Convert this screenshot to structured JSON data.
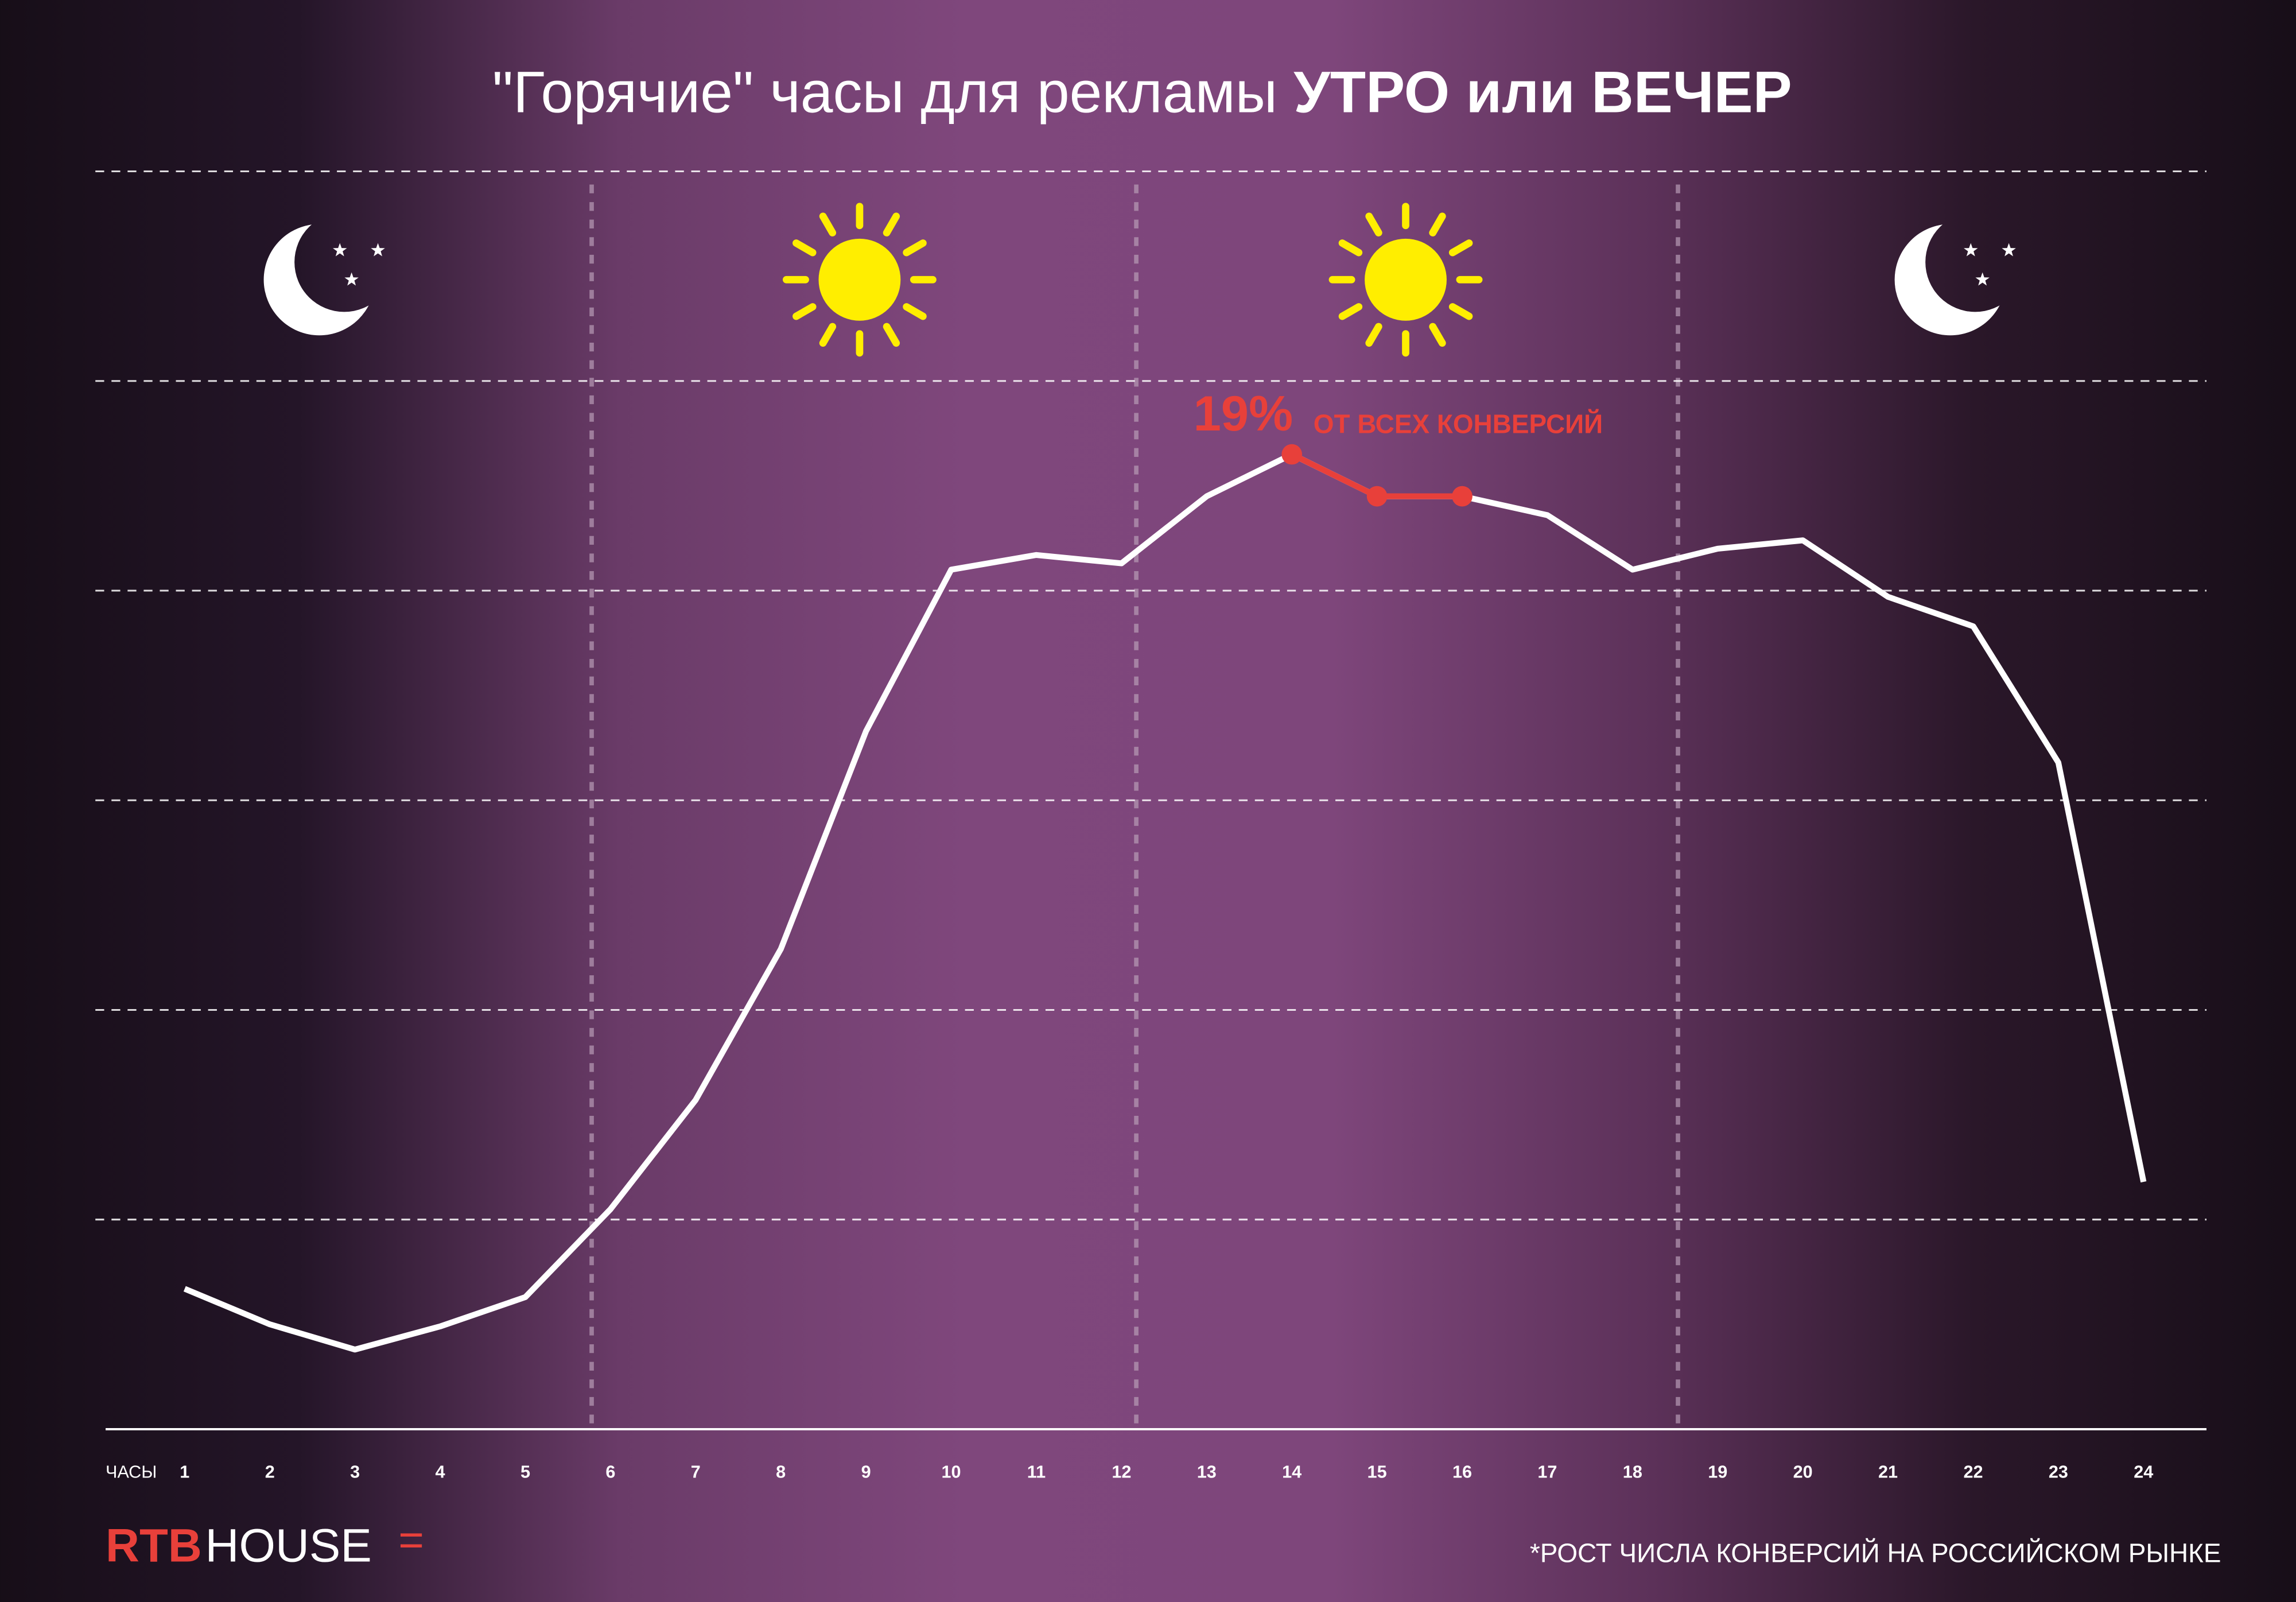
{
  "chart_data": {
    "type": "line",
    "title": "\"Горячие\" часы для рекламы ",
    "title_bold": "УТРО или ВЕЧЕР",
    "x_label": "ЧАСЫ",
    "categories": [
      "1",
      "2",
      "3",
      "4",
      "5",
      "6",
      "7",
      "8",
      "9",
      "10",
      "11",
      "12",
      "13",
      "14",
      "15",
      "16",
      "17",
      "18",
      "19",
      "20",
      "21",
      "22",
      "23",
      "24"
    ],
    "values": [
      0.67,
      0.5,
      0.38,
      0.49,
      0.63,
      1.05,
      1.57,
      2.29,
      3.33,
      4.1,
      4.17,
      4.13,
      4.45,
      4.65,
      4.45,
      4.45,
      4.36,
      4.1,
      4.2,
      4.24,
      3.97,
      3.83,
      3.18,
      1.18
    ],
    "color": "#ffffff",
    "highlight_color": "#e8403a",
    "highlight_categories": [
      "14",
      "15",
      "16"
    ],
    "annotation": {
      "value_label": "19%",
      "text": "ОТ ВСЕХ КОНВЕРСИЙ"
    },
    "ylim": [
      0,
      6
    ],
    "yticks": [
      0,
      1,
      2,
      3,
      4,
      5,
      6
    ],
    "grid": true,
    "footnote": "*РОСТ ЧИСЛА КОНВЕРСИЙ НА РОССИЙСКОМ РЫНКЕ"
  },
  "logo": {
    "part1": "RTB",
    "part2": "HOUSE",
    "mark": "="
  }
}
